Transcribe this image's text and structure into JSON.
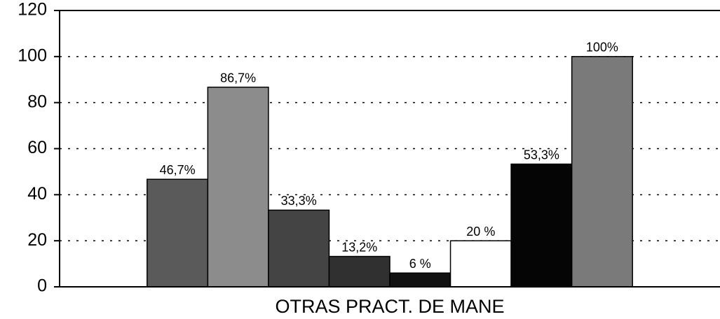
{
  "chart_data": {
    "type": "bar",
    "categories": [
      "OTRAS PRACT. DE MANE"
    ],
    "series": [
      {
        "color": "#5a5a5a",
        "values": [
          46.7
        ],
        "value_labels": [
          "46,7%"
        ]
      },
      {
        "color": "#8c8c8c",
        "values": [
          86.7
        ],
        "value_labels": [
          "86,7%"
        ]
      },
      {
        "color": "#444444",
        "values": [
          33.3
        ],
        "value_labels": [
          "33,3%"
        ]
      },
      {
        "color": "#303030",
        "values": [
          13.2
        ],
        "value_labels": [
          "13,2%"
        ]
      },
      {
        "color": "#111111",
        "values": [
          6
        ],
        "value_labels": [
          "6 %"
        ]
      },
      {
        "color": "#ffffff",
        "values": [
          20
        ],
        "value_labels": [
          "20 %"
        ]
      },
      {
        "color": "#050505",
        "values": [
          53.3
        ],
        "value_labels": [
          "53,3%"
        ]
      },
      {
        "color": "#7a7a7a",
        "values": [
          100
        ],
        "value_labels": [
          "100%"
        ]
      }
    ],
    "ylim": [
      0,
      120
    ],
    "yticks": [
      0,
      20,
      40,
      60,
      80,
      100,
      120
    ],
    "grid": true
  }
}
